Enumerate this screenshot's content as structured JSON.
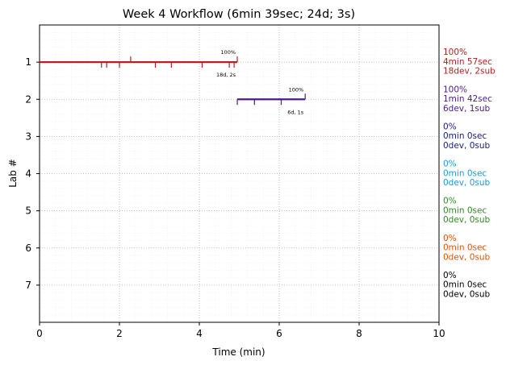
{
  "chart_data": {
    "type": "timeline",
    "title": "Week 4 Workflow (6min 39sec; 24d; 3s)",
    "xlabel": "Time (min)",
    "ylabel": "Lab #",
    "xlim": [
      0,
      10
    ],
    "ylim": [
      0,
      8
    ],
    "y_inverted": true,
    "xticks": [
      "0",
      "2",
      "4",
      "6",
      "8",
      "10"
    ],
    "yticks": [
      "1",
      "2",
      "3",
      "4",
      "5",
      "6",
      "7"
    ],
    "grid": true,
    "minor_grid": true,
    "labs": [
      {
        "lab": 1,
        "color": "#b22222",
        "start": 0.0,
        "end": 4.95,
        "percent_label": "100%",
        "detail_label": "18d, 2s",
        "dev_ticks": [
          1.55,
          1.68,
          2.0,
          2.9,
          3.3,
          4.07,
          4.75,
          4.87
        ],
        "sub_ticks": [
          2.28,
          4.95
        ],
        "summary": [
          "100%",
          "4min 57sec",
          "18dev, 2sub"
        ]
      },
      {
        "lab": 2,
        "color": "#4b1c8c",
        "start": 4.95,
        "end": 6.65,
        "percent_label": "100%",
        "detail_label": "6d, 1s",
        "dev_ticks": [
          4.95,
          5.38,
          6.05
        ],
        "sub_ticks": [
          6.65
        ],
        "summary": [
          "100%",
          "1min 42sec",
          "6dev, 1sub"
        ]
      },
      {
        "lab": 3,
        "color": "#1a237e",
        "summary": [
          "0%",
          "0min 0sec",
          "0dev, 0sub"
        ]
      },
      {
        "lab": 4,
        "color": "#1e9ad6",
        "summary": [
          "0%",
          "0min 0sec",
          "0dev, 0sub"
        ]
      },
      {
        "lab": 5,
        "color": "#2e8b22",
        "summary": [
          "0%",
          "0min 0sec",
          "0dev, 0sub"
        ]
      },
      {
        "lab": 6,
        "color": "#e0520a",
        "summary": [
          "0%",
          "0min 0sec",
          "0dev, 0sub"
        ]
      },
      {
        "lab": 7,
        "color": "#000000",
        "summary": [
          "0%",
          "0min 0sec",
          "0dev, 0sub"
        ]
      }
    ]
  }
}
